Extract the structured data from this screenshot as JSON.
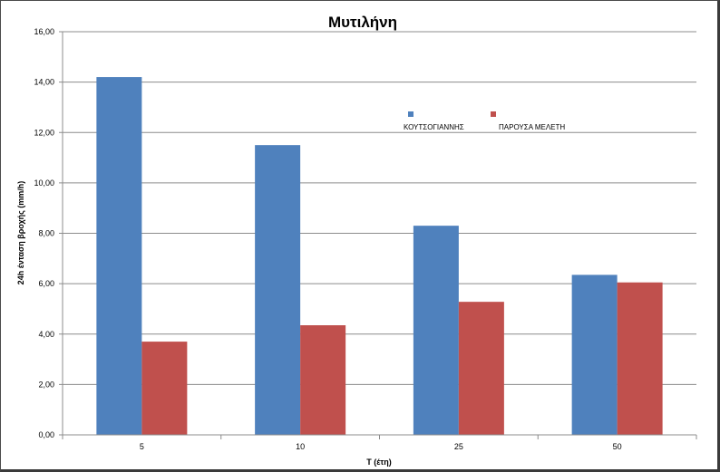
{
  "chart_data": {
    "type": "bar",
    "title": "Μυτιλήνη",
    "xlabel": "T (έτη)",
    "ylabel": "24h ένταση βροχής (mm/h)",
    "categories": [
      "5",
      "10",
      "25",
      "50"
    ],
    "series": [
      {
        "name": "ΚΟΥΤΣΟΓΙΑΝΝΗΣ",
        "color": "#4f81bd",
        "values": [
          14.2,
          11.5,
          8.3,
          6.35
        ]
      },
      {
        "name": "ΠΑΡΟΥΣΑ ΜΕΛΕΤΗ",
        "color": "#c0504d",
        "values": [
          3.7,
          4.35,
          5.28,
          6.05
        ]
      }
    ],
    "ylim": [
      0,
      16
    ],
    "yticks": [
      "0,00",
      "2,00",
      "4,00",
      "6,00",
      "8,00",
      "10,00",
      "12,00",
      "14,00",
      "16,00"
    ],
    "grid": true,
    "legend_position": "top-right"
  }
}
